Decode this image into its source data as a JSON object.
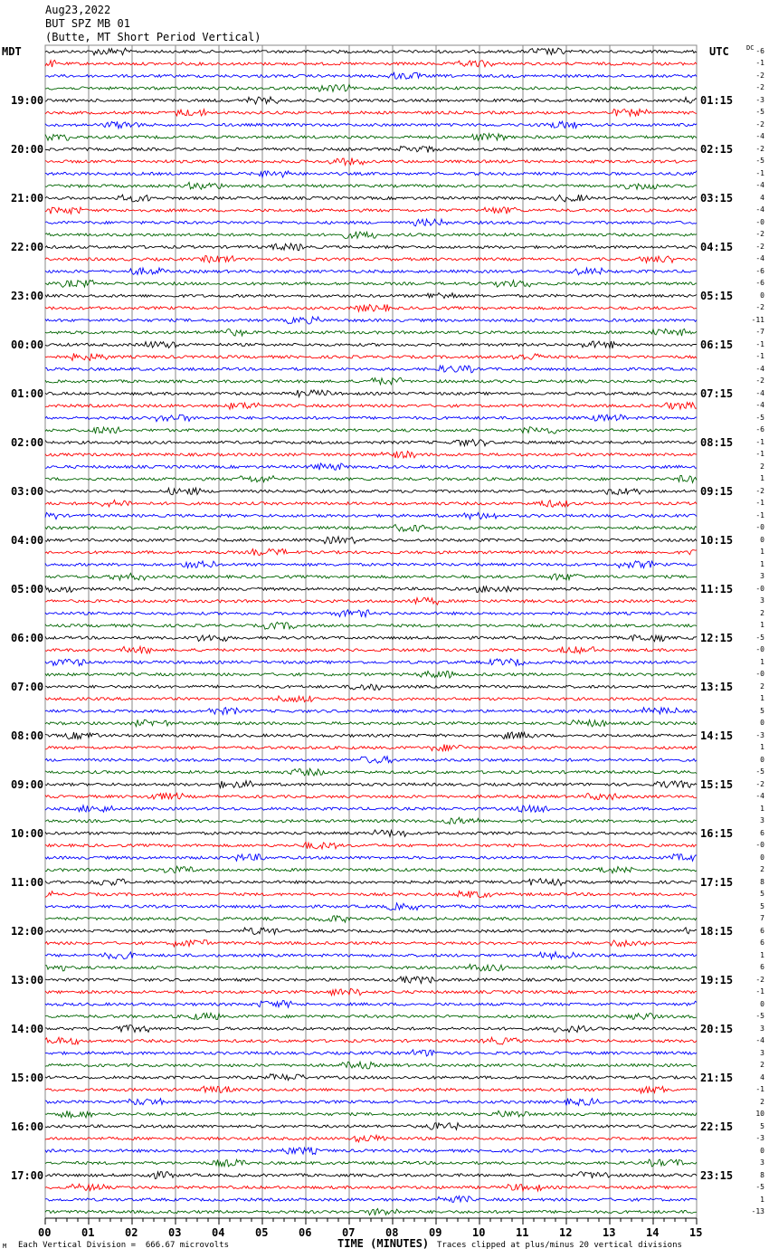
{
  "header": {
    "date": "Aug23,2022",
    "station": "BUT SPZ MB 01",
    "description": "(Butte, MT Short Period Vertical)"
  },
  "left_tz": "MDT",
  "right_tz": "UTC",
  "dc_label": "DC",
  "left_hours": [
    "19:00",
    "20:00",
    "21:00",
    "22:00",
    "23:00",
    "00:00",
    "01:00",
    "02:00",
    "03:00",
    "04:00",
    "05:00",
    "06:00",
    "07:00",
    "08:00",
    "09:00",
    "10:00",
    "11:00",
    "12:00",
    "13:00",
    "14:00",
    "15:00",
    "16:00",
    "17:00"
  ],
  "right_hours": [
    "01:15",
    "02:15",
    "03:15",
    "04:15",
    "05:15",
    "06:15",
    "07:15",
    "08:15",
    "09:15",
    "10:15",
    "11:15",
    "12:15",
    "13:15",
    "14:15",
    "15:15",
    "16:15",
    "17:15",
    "18:15",
    "19:15",
    "20:15",
    "21:15",
    "22:15",
    "23:15"
  ],
  "dc_values": [
    "-6",
    "-1",
    "-2",
    "-2",
    "-3",
    "-5",
    "-2",
    "-4",
    "-2",
    "-5",
    "-1",
    "-4",
    "4",
    "-4",
    "-0",
    "-2",
    "-2",
    "-4",
    "-6",
    "-6",
    "0",
    "-2",
    "-11",
    "-7",
    "-1",
    "-1",
    "-4",
    "-2",
    "-4",
    "-4",
    "-5",
    "-6",
    "-1",
    "-1",
    "2",
    "1",
    "-2",
    "-1",
    "-1",
    "-0",
    "0",
    "1",
    "1",
    "3",
    "-0",
    "3",
    "2",
    "1",
    "-5",
    "-0",
    "1",
    "-0",
    "2",
    "1",
    "5",
    "0",
    "-3",
    "1",
    "0",
    "-5",
    "-2",
    "-4",
    "1",
    "3",
    "6",
    "-0",
    "0",
    "2",
    "8",
    "5",
    "5",
    "7",
    "6",
    "6",
    "1",
    "6",
    "-2",
    "-1",
    "0",
    "-5",
    "3",
    "-4",
    "3",
    "2",
    "4",
    "-1",
    "2",
    "10",
    "5",
    "-3",
    "0",
    "3",
    "8",
    "-5",
    "1",
    "-13"
  ],
  "footer": {
    "scale": "Each Vertical Division =  666.67 microvolts",
    "clip": "Traces clipped at plus/minus 20 vertical divisions",
    "mark": "M"
  },
  "chart_data": {
    "type": "line",
    "xlabel": "TIME (MINUTES)",
    "x_ticks": [
      "00",
      "01",
      "02",
      "03",
      "04",
      "05",
      "06",
      "07",
      "08",
      "09",
      "10",
      "11",
      "12",
      "13",
      "14",
      "15"
    ],
    "xlim": [
      0,
      15
    ],
    "trace_count": 96,
    "trace_minutes": 15,
    "trace_colors": [
      "#000000",
      "#ff0000",
      "#0000ff",
      "#006400"
    ],
    "grid": true
  }
}
